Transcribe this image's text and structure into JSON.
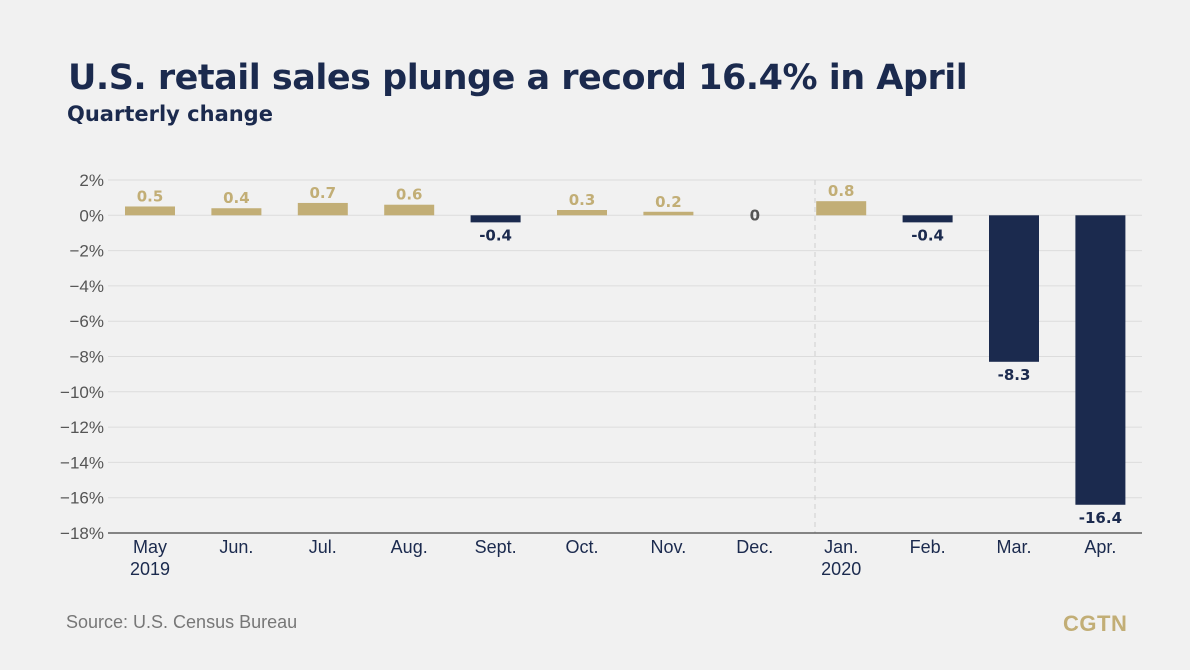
{
  "header": {
    "title": "U.S. retail sales plunge a record 16.4% in April",
    "subtitle": "Quarterly change"
  },
  "footer": {
    "source": "Source: U.S. Census Bureau",
    "logo": "CGTN"
  },
  "colors": {
    "positive": "#c2ae76",
    "negative": "#1b2a4e",
    "grid": "#dcdcdc",
    "axis": "#444444"
  },
  "chart_data": {
    "type": "bar",
    "title": "U.S. retail sales plunge a record 16.4% in April",
    "subtitle": "Quarterly change",
    "xlabel": "",
    "ylabel": "",
    "categories": [
      "May",
      "Jun.",
      "Jul.",
      "Aug.",
      "Sept.",
      "Oct.",
      "Nov.",
      "Dec.",
      "Jan.",
      "Feb.",
      "Mar.",
      "Apr."
    ],
    "year_labels": [
      "2019",
      "",
      "",
      "",
      "",
      "",
      "",
      "",
      "2020",
      "",
      "",
      ""
    ],
    "values": [
      0.5,
      0.4,
      0.7,
      0.6,
      -0.4,
      0.3,
      0.2,
      0,
      0.8,
      -0.4,
      -8.3,
      -16.4
    ],
    "value_labels": [
      "0.5",
      "0.4",
      "0.7",
      "0.6",
      "-0.4",
      "0.3",
      "0.2",
      "0",
      "0.8",
      "-0.4",
      "-8.3",
      "-16.4"
    ],
    "ylim": [
      -18,
      2
    ],
    "yticks": [
      2,
      0,
      -2,
      -4,
      -6,
      -8,
      -10,
      -12,
      -14,
      -16,
      -18
    ],
    "ytick_labels": [
      "2%",
      "0%",
      "−2%",
      "−4%",
      "−6%",
      "−8%",
      "−10%",
      "−12%",
      "−14%",
      "−16%",
      "−18%"
    ],
    "grid": true,
    "year_divider_after": "Dec."
  }
}
